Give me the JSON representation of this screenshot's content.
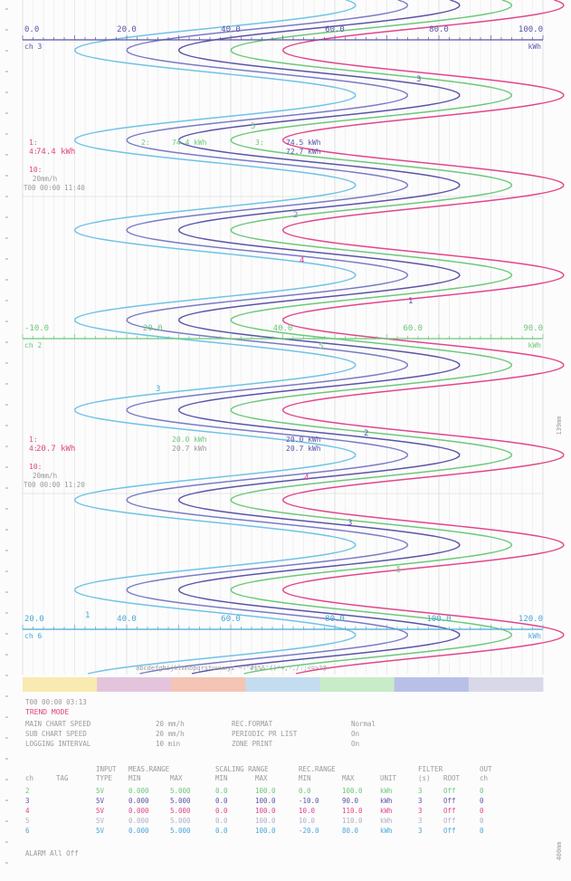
{
  "colors": {
    "grid": "#e6e6e6",
    "grid_major": "#d9d9d9",
    "ch2": "#6fc3e6",
    "ch3": "#5a54a8",
    "ch4": "#e2468a",
    "ch5": "#6cc87a",
    "ch6": "#4aa8d8",
    "text_gray": "#9a9a9a",
    "text_red": "#e0467e"
  },
  "chart_data": {
    "type": "line",
    "description_hidden": "",
    "scales": [
      {
        "id": "scale_top",
        "channel": "ch 3",
        "unit": "kWh",
        "range": [
          0,
          100
        ],
        "ticks": [
          "0.0",
          "20.0",
          "40.0",
          "60.0",
          "80.0",
          "100.0"
        ],
        "color": "#5a54a8"
      },
      {
        "id": "scale_middle",
        "channel": "ch 2",
        "unit": "kWh",
        "range": [
          -10,
          90
        ],
        "ticks": [
          "-10.0",
          "20.0",
          "40.0",
          "60.0",
          "90.0"
        ],
        "color": "#6cc87a"
      },
      {
        "id": "scale_bottom",
        "channel": "ch 6",
        "unit": "kWh",
        "range": [
          20,
          120
        ],
        "ticks": [
          "20.0",
          "40.0",
          "60.0",
          "80.0",
          "100.0",
          "120.0"
        ],
        "color": "#4aa8d8"
      }
    ],
    "series": [
      {
        "name": "2",
        "color": "#6fc3e6",
        "offset_percent": 0
      },
      {
        "name": "3",
        "color": "#7a7ac8",
        "offset_percent": 10
      },
      {
        "name": "4",
        "color": "#5a54a8",
        "offset_percent": 20
      },
      {
        "name": "5",
        "color": "#6cc87a",
        "offset_percent": 30
      },
      {
        "name": "6",
        "color": "#e2468a",
        "offset_percent": 40
      }
    ],
    "wave": {
      "amplitude_percent": 27,
      "center_percent": 37,
      "cycles": 7.5
    },
    "annotations": [
      {
        "id": "ann1",
        "line1_left": "1:",
        "line1_left2": "4:",
        "value_a": "74.4 kWh",
        "line1_mid": "2:",
        "value_b": "74.4 kWh",
        "line1_mid2": "3:",
        "value_c": "74.5 kWh",
        "value_d": "72.7 kWh",
        "line3_left": "10:",
        "speed": "20mm/h",
        "time": "T00 00:00 11:40"
      },
      {
        "id": "ann2",
        "line1_left": "1:",
        "line1_left2": "4:",
        "value_a": "20.7 kWh",
        "value_b": "20.0 kWh",
        "value_b2": "20.7 kWh",
        "value_c": "20.0 kWh",
        "value_d": "20.7 kWh",
        "line3_left": "10:",
        "speed": "20mm/h",
        "time": "T00 00:00 11:20"
      }
    ],
    "side_labels": {
      "right_mid": "139mm",
      "right_bottom": "400mm"
    },
    "message": "abcdefghijklmnopqrstuvwxyz   ~!\"#$%&'()*+,-./:;<=>?@"
  },
  "report": {
    "time": "T00 00:00 03:13",
    "mode": "TREND MODE",
    "rows": [
      {
        "label": "MAIN CHART SPEED",
        "value": "20 mm/h",
        "label2": "REC.FORMAT",
        "value2": "Normal"
      },
      {
        "label": "SUB  CHART SPEED",
        "value": "20 mm/h",
        "label2": "PERIODIC PR LIST",
        "value2": "On"
      },
      {
        "label": "LOGGING INTERVAL",
        "value": "10 min",
        "label2": "ZONE PRINT",
        "value2": "On"
      }
    ],
    "header1": [
      "",
      "",
      "INPUT",
      "MEAS.RANGE",
      "",
      "SCALING RANGE",
      "",
      "REC.RANGE",
      "",
      "",
      "FILTER",
      "",
      "OUT"
    ],
    "header2": [
      "ch",
      "TAG",
      "TYPE",
      "MIN",
      "MAX",
      "MIN",
      "MAX",
      "MIN",
      "MAX",
      "UNIT",
      "(s)",
      "ROOT",
      "ch"
    ],
    "table": [
      {
        "ch": "2",
        "type": "5V",
        "min": "0.000",
        "max": "5.000",
        "smin": "0.0",
        "smax": "100.0",
        "rmin": "0.0",
        "rmax": "100.0",
        "unit": "kWh",
        "filter": "3",
        "root": "Off",
        "out": "0",
        "color": "#6cc87a"
      },
      {
        "ch": "3",
        "type": "5V",
        "min": "0.000",
        "max": "5.000",
        "smin": "0.0",
        "smax": "100.0",
        "rmin": "-10.0",
        "rmax": "90.0",
        "unit": "kWh",
        "filter": "3",
        "root": "Off",
        "out": "0",
        "color": "#5a54a8"
      },
      {
        "ch": "4",
        "type": "5V",
        "min": "0.000",
        "max": "5.000",
        "smin": "0.0",
        "smax": "100.0",
        "rmin": "10.0",
        "rmax": "110.0",
        "unit": "kWh",
        "filter": "3",
        "root": "Off",
        "out": "0",
        "color": "#e2468a"
      },
      {
        "ch": "5",
        "type": "5V",
        "min": "0.000",
        "max": "5.000",
        "smin": "0.0",
        "smax": "100.0",
        "rmin": "10.0",
        "rmax": "110.0",
        "unit": "kWh",
        "filter": "3",
        "root": "Off",
        "out": "0",
        "color": "#b0b0c8"
      },
      {
        "ch": "6",
        "type": "5V",
        "min": "0.000",
        "max": "5.000",
        "smin": "0.0",
        "smax": "100.0",
        "rmin": "-20.0",
        "rmax": "80.0",
        "unit": "kWh",
        "filter": "3",
        "root": "Off",
        "out": "0",
        "color": "#4aa8d8"
      }
    ],
    "alarm": "ALARM  All Off"
  },
  "color_bar": [
    "#f8eab0",
    "#e4c4dc",
    "#f4c4b4",
    "#c4dcf0",
    "#c8ecc8",
    "#b8c0e8",
    "#d8d8e8"
  ]
}
